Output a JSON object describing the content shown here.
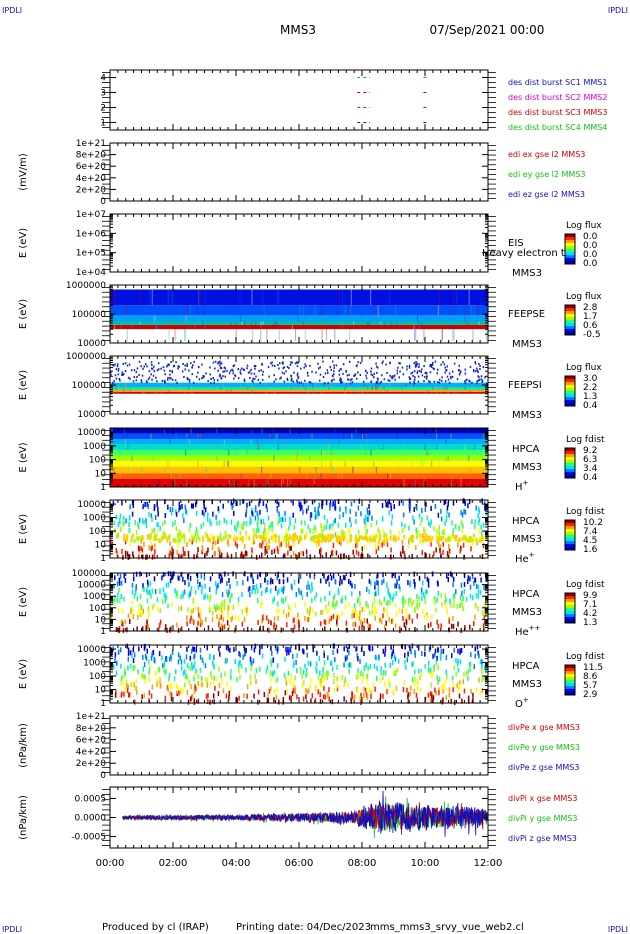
{
  "corner_labels": {
    "top_left": "IPDLI",
    "top_right": "IPDLI",
    "bottom_left": "IPDLI",
    "bottom_right": "IPDLI"
  },
  "header": {
    "spacecraft": "MMS3",
    "date": "07/Sep/2021 00:00"
  },
  "footer": {
    "produced_by": "Produced by cl (IRAP)",
    "printing_date": "Printing date: 04/Dec/2023",
    "file": "mms_mms3_srvy_vue_web2.cl"
  },
  "time_axis": {
    "ticks": [
      "00:00",
      "02:00",
      "04:00",
      "06:00",
      "08:00",
      "10:00",
      "12:00"
    ],
    "range_hours": [
      0,
      12
    ]
  },
  "colors": {
    "blue": "#1010c0",
    "green": "#10c010",
    "red": "#d00000",
    "magenta": "#d000d0",
    "colorbar": [
      "#000090",
      "#0000ff",
      "#0080ff",
      "#00e0ff",
      "#20ff80",
      "#a0ff00",
      "#ffff00",
      "#ffa000",
      "#ff2000",
      "#900000"
    ]
  },
  "chart_data": [
    {
      "id": "burst",
      "type": "scatter",
      "ylabel": "",
      "yticks": [
        "4",
        "3",
        "2",
        "1"
      ],
      "ylim": [
        0.5,
        4.5
      ],
      "legend": [
        {
          "text": "des dist burst SC1 MMS1",
          "color": "#1010c0"
        },
        {
          "text": "des dist burst SC2 MMS2",
          "color": "#d000d0"
        },
        {
          "text": "des dist burst SC3 MMS3",
          "color": "#d00000"
        },
        {
          "text": "des dist burst SC4 MMS4",
          "color": "#10c010"
        }
      ],
      "series": [
        {
          "name": "des dist burst SC1 MMS1",
          "level": 1,
          "intervals": [
            [
              7.85,
              8.25
            ],
            [
              9.95,
              10.1
            ]
          ]
        },
        {
          "name": "des dist burst SC2 MMS2",
          "level": 2,
          "intervals": [
            [
              7.85,
              8.25
            ],
            [
              9.95,
              10.1
            ]
          ]
        },
        {
          "name": "des dist burst SC3 MMS3",
          "level": 3,
          "intervals": [
            [
              7.85,
              8.25
            ],
            [
              9.95,
              10.1
            ]
          ]
        },
        {
          "name": "des dist burst SC4 MMS4",
          "level": 4,
          "intervals": [
            [
              7.85,
              8.25
            ],
            [
              9.95,
              10.1
            ]
          ]
        }
      ]
    },
    {
      "id": "edi",
      "type": "line",
      "ylabel": "(mV/m)",
      "yticks": [
        "1e+21",
        "8e+20",
        "6e+20",
        "4e+20",
        "2e+20",
        "0"
      ],
      "ylim": [
        0,
        1e+21
      ],
      "legend": [
        {
          "text": "edi ex gse l2 MMS3",
          "color": "#d00000"
        },
        {
          "text": "edi ey gse l2 MMS3",
          "color": "#10c010"
        },
        {
          "text": "edi ez gse l2 MMS3",
          "color": "#1010c0"
        }
      ],
      "zero_line": true
    },
    {
      "id": "eis",
      "type": "heatmap",
      "ylabel": "E (eV)",
      "yticks": [
        "1e+07",
        "1e+06",
        "1e+05",
        "1e+04"
      ],
      "ylim": [
        10000.0,
        10000000.0
      ],
      "log_y": true,
      "instrument": "EIS",
      "spacecraft": "MMS3",
      "overlay_text": "Heavy electron to",
      "colorbar": {
        "title": "Log flux",
        "labels": [
          "0.0",
          "0.0",
          "0.0",
          "0.0"
        ]
      },
      "empty": true
    },
    {
      "id": "feepse",
      "type": "heatmap",
      "ylabel": "E (eV)",
      "yticks": [
        "1000000",
        "100000",
        "10000"
      ],
      "ylim": [
        10000.0,
        1000000.0
      ],
      "log_y": true,
      "instrument": "FEEPSE",
      "spacecraft": "MMS3",
      "colorbar": {
        "title": "Log flux",
        "labels": [
          "2.8",
          "1.7",
          "0.6",
          "-0.5"
        ]
      },
      "bands": [
        {
          "from": 12000,
          "to": 30000,
          "color": "#ffffff"
        },
        {
          "from": 30000,
          "to": 42000,
          "color": "#d00000"
        },
        {
          "from": 42000,
          "to": 55000,
          "color": "#00c0a0"
        },
        {
          "from": 55000,
          "to": 90000,
          "color": "#00a0ff"
        },
        {
          "from": 90000,
          "to": 200000,
          "color": "#0050ff"
        },
        {
          "from": 200000,
          "to": 700000,
          "color": "#0010e0"
        }
      ]
    },
    {
      "id": "feepsi",
      "type": "heatmap",
      "ylabel": "E (eV)",
      "yticks": [
        "1000000",
        "100000",
        "10000"
      ],
      "ylim": [
        10000.0,
        1000000.0
      ],
      "log_y": true,
      "instrument": "FEEPSI",
      "spacecraft": "MMS3",
      "colorbar": {
        "title": "Log flux",
        "labels": [
          "3.0",
          "2.2",
          "1.3",
          "0.4"
        ]
      },
      "bands": [
        {
          "from": 50000,
          "to": 58000,
          "color": "#d00000"
        },
        {
          "from": 58000,
          "to": 68000,
          "color": "#ffa000"
        },
        {
          "from": 68000,
          "to": 85000,
          "color": "#20e090"
        },
        {
          "from": 85000,
          "to": 120000,
          "color": "#00b0ff"
        }
      ],
      "speckle": {
        "from": 120000,
        "to": 700000,
        "color": "#1020d0"
      }
    },
    {
      "id": "hpca_h",
      "type": "heatmap",
      "ylabel": "E (eV)",
      "yticks": [
        "10000",
        "1000",
        "100",
        "10",
        "1"
      ],
      "ylim": [
        1,
        20000
      ],
      "log_y": true,
      "instrument": "HPCA",
      "spacecraft": "MMS3",
      "species": "H",
      "charge": "+",
      "colorbar": {
        "title": "Log fdist",
        "labels": [
          "9.2",
          "6.3",
          "3.4",
          "0.4"
        ]
      },
      "bands": [
        {
          "from": 8000,
          "to": 20000,
          "color": "#0000c0"
        },
        {
          "from": 3000,
          "to": 8000,
          "color": "#0050ff"
        },
        {
          "from": 1200,
          "to": 3000,
          "color": "#00b0ff"
        },
        {
          "from": 500,
          "to": 1200,
          "color": "#00e0c0"
        },
        {
          "from": 200,
          "to": 500,
          "color": "#40ff60"
        },
        {
          "from": 80,
          "to": 200,
          "color": "#a0ff00"
        },
        {
          "from": 30,
          "to": 80,
          "color": "#ffff00"
        },
        {
          "from": 10,
          "to": 30,
          "color": "#ffc000"
        },
        {
          "from": 4,
          "to": 10,
          "color": "#ff6000"
        },
        {
          "from": 1,
          "to": 4,
          "color": "#e00000"
        }
      ]
    },
    {
      "id": "hpca_he",
      "type": "heatmap",
      "ylabel": "E (eV)",
      "yticks": [
        "10000",
        "1000",
        "100",
        "10",
        "1"
      ],
      "ylim": [
        1,
        20000
      ],
      "log_y": true,
      "instrument": "HPCA",
      "spacecraft": "MMS3",
      "species": "He",
      "charge": "+",
      "colorbar": {
        "title": "Log fdist",
        "labels": [
          "10.2",
          "7.4",
          "4.5",
          "1.6"
        ]
      },
      "streak": {
        "center_ev": 35,
        "color": "#ffd000"
      }
    },
    {
      "id": "hpca_hepp",
      "type": "heatmap",
      "ylabel": "E (eV)",
      "yticks": [
        "100000",
        "10000",
        "1000",
        "100",
        "10",
        "1"
      ],
      "ylim": [
        1,
        100000
      ],
      "log_y": true,
      "instrument": "HPCA",
      "spacecraft": "MMS3",
      "species": "He",
      "charge": "++",
      "colorbar": {
        "title": "Log fdist",
        "labels": [
          "9.9",
          "7.1",
          "4.2",
          "1.3"
        ]
      }
    },
    {
      "id": "hpca_o",
      "type": "heatmap",
      "ylabel": "E (eV)",
      "yticks": [
        "10000",
        "1000",
        "100",
        "10",
        "1"
      ],
      "ylim": [
        1,
        20000
      ],
      "log_y": true,
      "instrument": "HPCA",
      "spacecraft": "MMS3",
      "species": "O",
      "charge": "+",
      "colorbar": {
        "title": "Log fdist",
        "labels": [
          "11.5",
          "8.6",
          "5.7",
          "2.9"
        ]
      }
    },
    {
      "id": "divpe",
      "type": "line",
      "ylabel": "(nPa/km)",
      "yticks": [
        "1e+21",
        "8e+20",
        "6e+20",
        "4e+20",
        "2e+20",
        "0"
      ],
      "ylim": [
        0,
        1e+21
      ],
      "legend": [
        {
          "text": "divPe x gse MMS3",
          "color": "#d00000"
        },
        {
          "text": "divPe y gse MMS3",
          "color": "#10c010"
        },
        {
          "text": "divPe z gse MMS3",
          "color": "#1010c0"
        }
      ],
      "zero_line": true
    },
    {
      "id": "divpi",
      "type": "line",
      "ylabel": "(nPa/km)",
      "yticks": [
        "0.0005",
        "0.0000",
        "-0.0005"
      ],
      "ylim": [
        -0.0008,
        0.0008
      ],
      "legend": [
        {
          "text": "divPi x gse MMS3",
          "color": "#d00000"
        },
        {
          "text": "divPi y gse MMS3",
          "color": "#10c010"
        },
        {
          "text": "divPi z gse MMS3",
          "color": "#1010c0"
        }
      ],
      "data_start_hours": 0.4,
      "amplitude_envelope": [
        {
          "t": 0.4,
          "amp": 6e-05
        },
        {
          "t": 4.0,
          "amp": 8e-05
        },
        {
          "t": 6.0,
          "amp": 0.00012
        },
        {
          "t": 7.7,
          "amp": 0.00018
        },
        {
          "t": 8.5,
          "amp": 0.00045
        },
        {
          "t": 10.0,
          "amp": 0.00035
        },
        {
          "t": 12.0,
          "amp": 0.00025
        }
      ]
    }
  ]
}
